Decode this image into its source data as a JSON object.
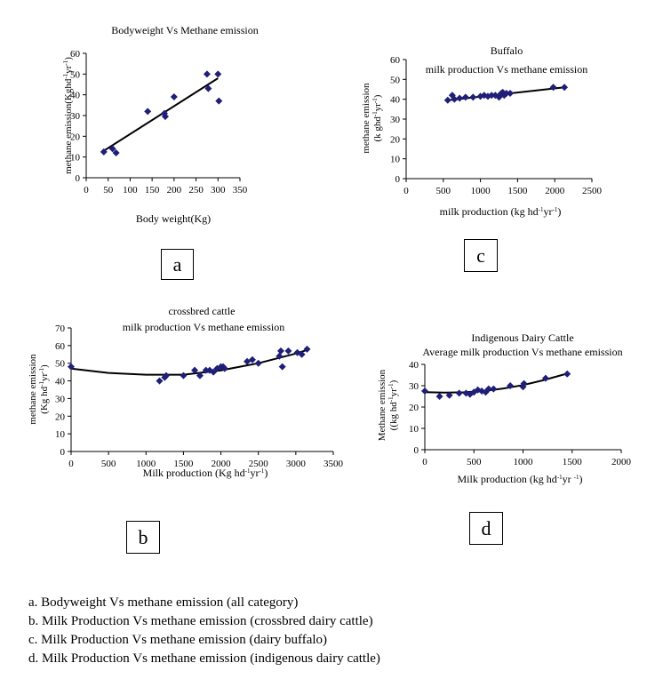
{
  "chart_data": [
    {
      "id": "a",
      "type": "scatter",
      "title": "Bodyweight Vs Methane emission",
      "xlabel": "Body weight(Kg)",
      "ylabel": "methane emission(Kghd-1yr-1)",
      "xlim": [
        0,
        350
      ],
      "ylim": [
        0,
        60
      ],
      "xticks": [
        0,
        50,
        100,
        150,
        200,
        250,
        300,
        350
      ],
      "yticks": [
        0,
        10,
        20,
        30,
        40,
        50,
        60
      ],
      "grid": false,
      "x": [
        40,
        60,
        68,
        140,
        178,
        180,
        200,
        275,
        278,
        300,
        302
      ],
      "y": [
        12.5,
        14,
        12,
        32,
        31,
        29.5,
        39,
        50,
        43,
        50,
        37
      ],
      "trendline": {
        "kind": "linear",
        "x": [
          40,
          300
        ],
        "y": [
          13,
          48
        ]
      }
    },
    {
      "id": "c",
      "type": "scatter",
      "title": "Buffalo",
      "subtitle": "milk production Vs methane emission",
      "xlabel": "milk production (kg hd-1yr-1)",
      "ylabel": "methane emission (k ghd-1yr-1)",
      "xlim": [
        0,
        2500
      ],
      "ylim": [
        0,
        60
      ],
      "xticks": [
        0,
        500,
        1000,
        1500,
        2000,
        2500
      ],
      "yticks": [
        0,
        10,
        20,
        30,
        40,
        50,
        60
      ],
      "grid": false,
      "x": [
        560,
        620,
        650,
        720,
        800,
        900,
        1000,
        1050,
        1100,
        1150,
        1200,
        1250,
        1280,
        1300,
        1320,
        1350,
        1400,
        1980,
        2130
      ],
      "y": [
        39.5,
        42,
        40,
        40.5,
        41,
        41,
        41.5,
        42,
        41.5,
        42,
        42,
        41,
        43,
        43.5,
        42,
        43,
        43,
        46,
        46
      ],
      "trendline": {
        "kind": "linear",
        "x": [
          560,
          2130
        ],
        "y": [
          39.5,
          46
        ]
      }
    },
    {
      "id": "b",
      "type": "scatter",
      "title": "crossbred cattle",
      "subtitle": "milk production  Vs methane emission",
      "xlabel": "Milk production (Kg hd-1yr-1)",
      "ylabel": "methane emission (Kg hd-1yr-1)",
      "xlim": [
        0,
        3500
      ],
      "ylim": [
        0,
        70
      ],
      "xticks": [
        0,
        500,
        1000,
        1500,
        2000,
        2500,
        3000,
        3500
      ],
      "yticks": [
        0,
        10,
        20,
        30,
        40,
        50,
        60,
        70
      ],
      "grid": false,
      "x": [
        0,
        1180,
        1250,
        1270,
        1500,
        1650,
        1720,
        1800,
        1850,
        1900,
        1950,
        2000,
        2030,
        2050,
        2350,
        2420,
        2500,
        2780,
        2800,
        2820,
        2900,
        3020,
        3080,
        3150
      ],
      "y": [
        48,
        40,
        42,
        43,
        43,
        46,
        43,
        46,
        46,
        45,
        47,
        48,
        48,
        47,
        51,
        52,
        50,
        54,
        57,
        48,
        57,
        56,
        55,
        58
      ],
      "trendline": {
        "kind": "polynomial",
        "x": [
          0,
          500,
          1000,
          1500,
          2000,
          2500,
          3000,
          3150
        ],
        "y": [
          47,
          44.5,
          43.5,
          43.5,
          46,
          50,
          55.5,
          57.5
        ]
      }
    },
    {
      "id": "d",
      "type": "scatter",
      "title": "Indigenous Dairy Cattle",
      "subtitle": "Average milk production Vs methane emission",
      "xlabel": "Milk production (kg hd-1yr -1)",
      "ylabel": "Methane emission ((kg hd-1yr-1)",
      "xlim": [
        0,
        2000
      ],
      "ylim": [
        0,
        40
      ],
      "xticks": [
        0,
        500,
        1000,
        1500,
        2000
      ],
      "yticks": [
        0,
        10,
        20,
        30,
        40
      ],
      "grid": false,
      "x": [
        0,
        150,
        250,
        350,
        420,
        460,
        500,
        540,
        580,
        620,
        650,
        700,
        870,
        1000,
        1010,
        1230,
        1450
      ],
      "y": [
        27.5,
        25,
        25.5,
        26.5,
        26.5,
        26,
        27,
        28,
        27.5,
        27,
        28.5,
        28.5,
        30,
        29.5,
        31,
        33.5,
        35.5
      ],
      "trendline": {
        "kind": "polynomial",
        "x": [
          0,
          200,
          400,
          600,
          800,
          1000,
          1200,
          1450
        ],
        "y": [
          27,
          26.8,
          26.9,
          27.5,
          28.7,
          30.3,
          32.5,
          35.7
        ]
      }
    }
  ],
  "panel_labels": [
    "a",
    "c",
    "b",
    "d"
  ],
  "captions": [
    "a. Bodyweight Vs methane emission (all category)",
    "b. Milk Production Vs methane emission (crossbred dairy cattle)",
    "c. Milk Production Vs methane emission (dairy buffalo)",
    "d. Milk Production Vs methane emission (indigenous dairy cattle)"
  ],
  "colors": {
    "marker": "#1f1f78",
    "line": "#000000"
  }
}
